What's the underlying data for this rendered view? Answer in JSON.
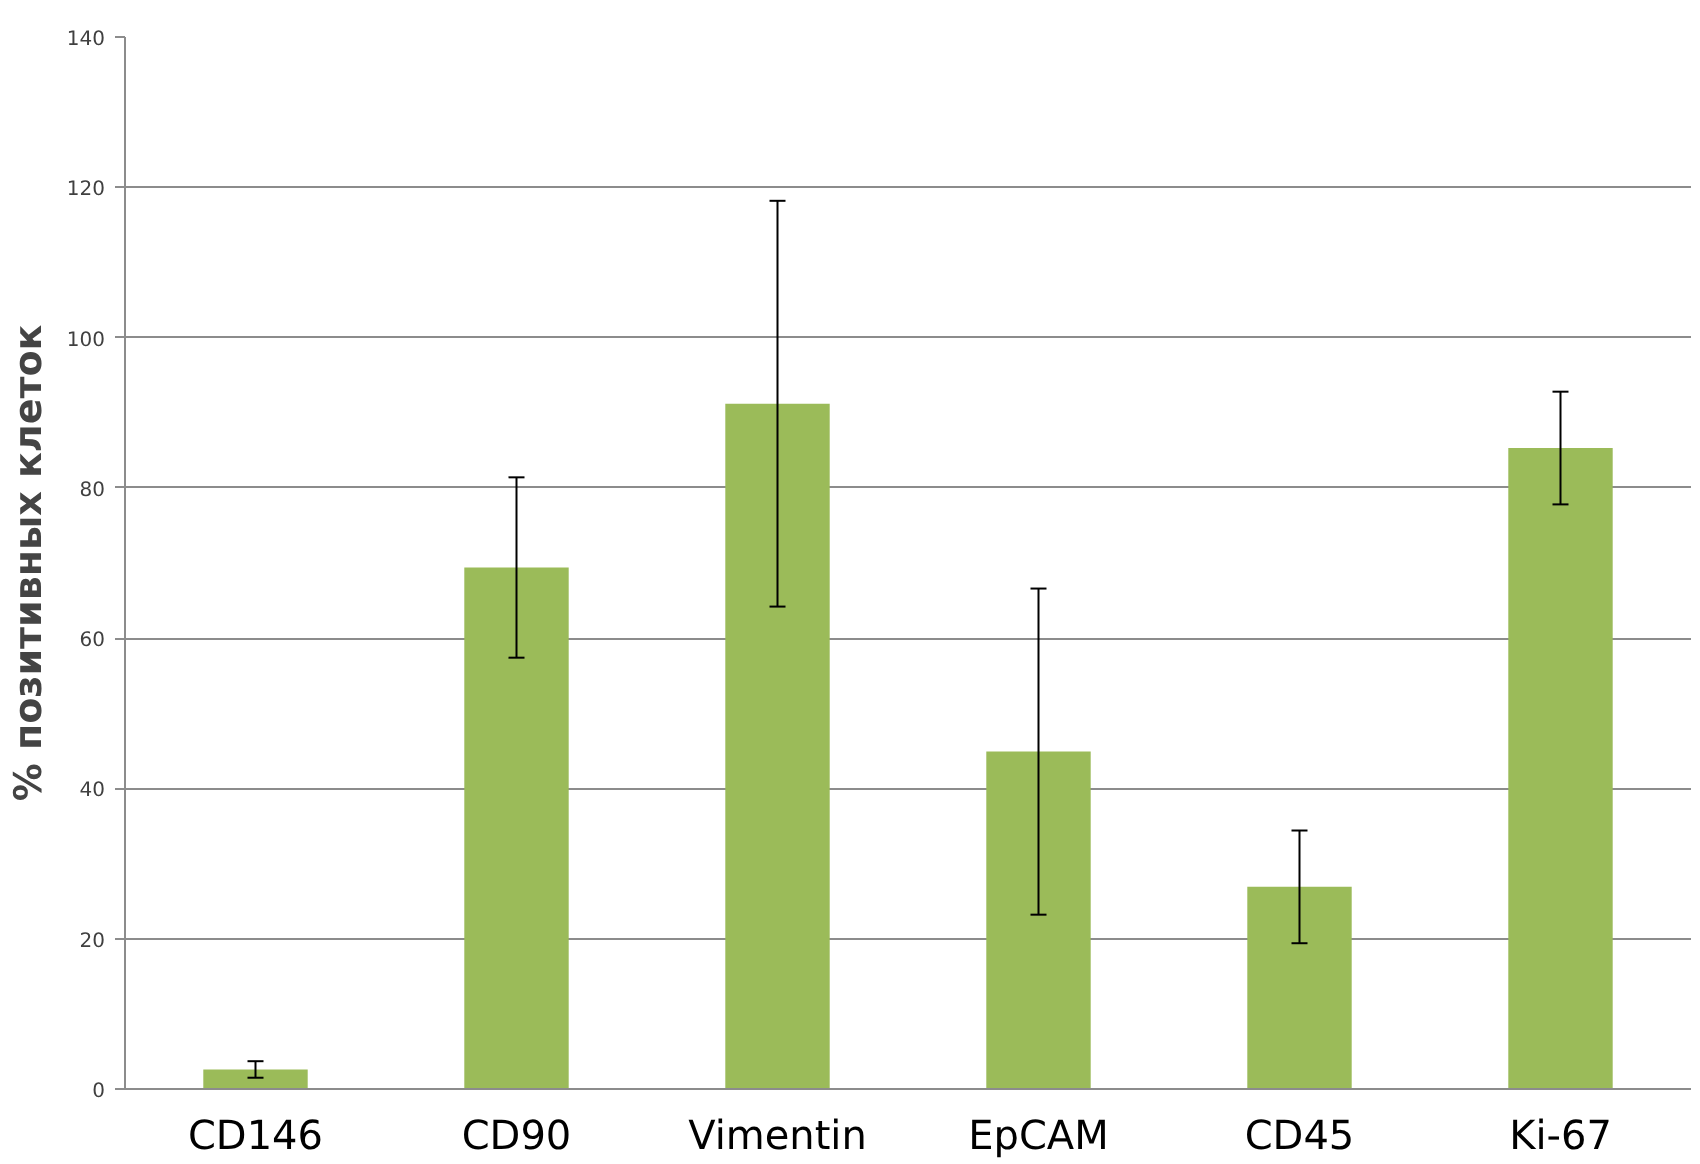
{
  "chart_data": {
    "type": "bar",
    "ylabel": "% позитивных клеток",
    "categories": [
      "CD146",
      "CD90",
      "Vimentin",
      "EpCAM",
      "CD45",
      "Ki-67"
    ],
    "values": [
      2.6,
      69.4,
      91.2,
      44.9,
      26.9,
      85.3
    ],
    "errors": [
      1.1,
      12,
      27,
      21.7,
      7.5,
      7.5
    ],
    "color": "#9bbb59",
    "ylim": [
      0,
      140
    ],
    "yticks": [
      0,
      20,
      40,
      60,
      80,
      100,
      120,
      140
    ],
    "grid": "y"
  }
}
